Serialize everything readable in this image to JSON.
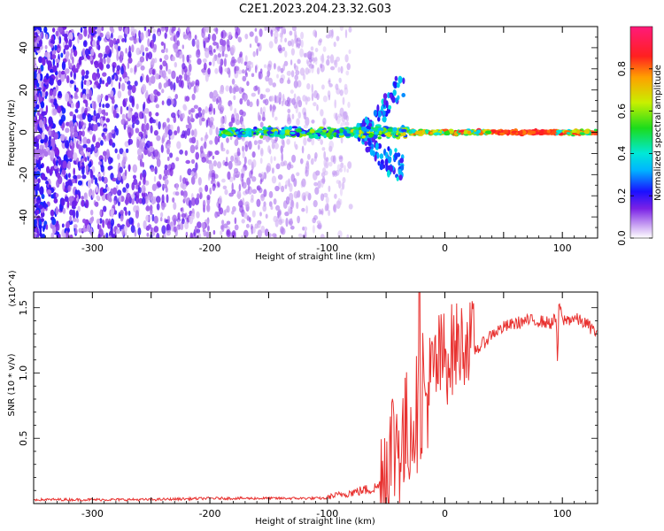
{
  "title": "C2E1.2023.204.23.32.G03",
  "chart_data": [
    {
      "type": "heatmap",
      "xlabel": "Height of straight line (km)",
      "ylabel": "Frequency (Hz)",
      "xlim": [
        -350,
        130
      ],
      "ylim": [
        -50,
        50
      ],
      "xticks": [
        -300,
        -200,
        -100,
        0,
        100
      ],
      "yticks": [
        -40,
        -20,
        0,
        20,
        40
      ],
      "colorbar": {
        "label": "Normalized spectral amplitude",
        "range": [
          0.0,
          1.0
        ],
        "ticks": [
          0.0,
          0.2,
          0.4,
          0.6,
          0.8
        ],
        "colormap": "rainbow (white-purple-blue-cyan-green-yellow-red-magenta)"
      },
      "features": {
        "noise_region_x": [
          -350,
          -100
        ],
        "signal_line_x": [
          -190,
          130
        ],
        "signal_frequency_hz": 0
      }
    },
    {
      "type": "line",
      "xlabel": "Height of straight line (km)",
      "ylabel": "SNR (10 * v/v)",
      "y_multiplier": "(x10^4)",
      "xlim": [
        -350,
        130
      ],
      "ylim": [
        0,
        1.62
      ],
      "xticks": [
        -300,
        -200,
        -100,
        0,
        100
      ],
      "yticks": [
        0.5,
        1.0,
        1.5
      ],
      "series": [
        {
          "color": "#e8312f",
          "x": [
            -350,
            -300,
            -250,
            -200,
            -150,
            -100,
            -80,
            -60,
            -50,
            -45,
            -40,
            -35,
            -30,
            -25,
            -20,
            -15,
            -10,
            -5,
            0,
            5,
            10,
            20,
            30,
            40,
            50,
            60,
            70,
            80,
            90,
            95,
            96,
            97,
            100,
            110,
            120,
            130
          ],
          "y": [
            0.02,
            0.02,
            0.02,
            0.03,
            0.03,
            0.03,
            0.05,
            0.07,
            0.12,
            0.25,
            0.35,
            0.3,
            0.45,
            0.55,
            0.6,
            0.7,
            0.85,
            0.95,
            1.0,
            1.05,
            1.1,
            1.15,
            1.2,
            1.3,
            1.35,
            1.38,
            1.4,
            1.4,
            1.38,
            1.42,
            0.95,
            1.55,
            1.4,
            1.42,
            1.38,
            1.3
          ]
        }
      ]
    }
  ]
}
